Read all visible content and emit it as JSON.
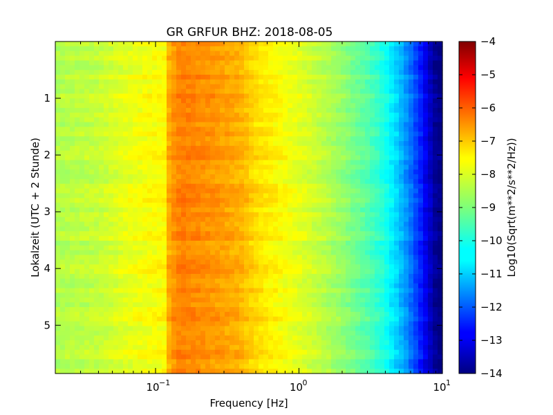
{
  "chart_data": {
    "type": "heatmap",
    "title": "GR GRFUR BHZ: 2018-08-05",
    "xlabel": "Frequency [Hz]",
    "ylabel": "Lokalzeit (UTC + 2 Stunde)",
    "colorbar_label": "Log10(Sqrt(m**2/s**2/Hz))",
    "x_scale": "log",
    "x_range": [
      0.02,
      10
    ],
    "x_ticks": [
      0.1,
      1,
      10
    ],
    "x_tick_labels": [
      {
        "base": "10",
        "exp": "−1"
      },
      {
        "base": "10",
        "exp": "0"
      },
      {
        "base": "10",
        "exp": "1"
      }
    ],
    "y_range": [
      0,
      5.85
    ],
    "y_inverted": true,
    "y_ticks": [
      1,
      2,
      3,
      4,
      5
    ],
    "y_tick_labels": [
      "1",
      "2",
      "3",
      "4",
      "5"
    ],
    "color_range": [
      -14,
      -4
    ],
    "colorbar_ticks": [
      -4,
      -5,
      -6,
      -7,
      -8,
      -9,
      -10,
      -11,
      -12,
      -13,
      -14
    ],
    "colorbar_tick_labels": [
      "−4",
      "−5",
      "−6",
      "−7",
      "−8",
      "−9",
      "−10",
      "−11",
      "−12",
      "−13",
      "−14"
    ],
    "colormap": "jet",
    "frequency_profile": {
      "freq": [
        0.02,
        0.04,
        0.06,
        0.09,
        0.118,
        0.125,
        0.15,
        0.2,
        0.3,
        0.4,
        0.5,
        0.7,
        1.0,
        1.5,
        2.0,
        3.0,
        4.0,
        5.0,
        6.0,
        7.0,
        8.0,
        9.0,
        10.0
      ],
      "value": [
        -8.5,
        -8.3,
        -8.0,
        -7.8,
        -7.7,
        -6.8,
        -6.5,
        -6.6,
        -6.8,
        -7.0,
        -7.4,
        -7.7,
        -8.0,
        -8.4,
        -8.8,
        -9.4,
        -10.0,
        -10.8,
        -11.6,
        -12.4,
        -13.2,
        -13.8,
        -14.0
      ]
    }
  }
}
